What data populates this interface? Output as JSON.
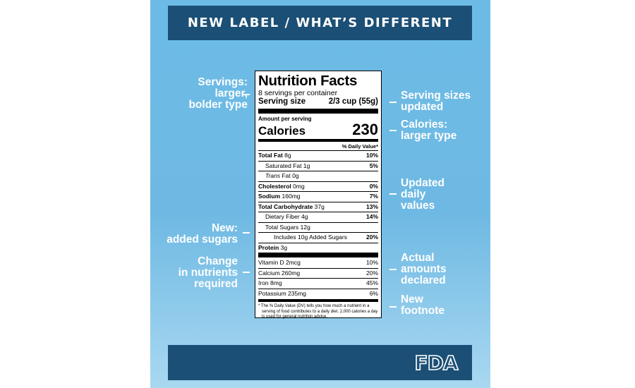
{
  "header": {
    "title": "NEW LABEL / WHAT’S DIFFERENT"
  },
  "annotations": {
    "servings": [
      "Servings:",
      "larger,",
      "bolder type"
    ],
    "serving_sizes": [
      "Serving sizes",
      "updated"
    ],
    "calories": [
      "Calories:",
      "larger type"
    ],
    "daily_values": [
      "Updated",
      "daily",
      "values"
    ],
    "added_sugars": [
      "New:",
      "added sugars"
    ],
    "nutrients_required": [
      "Change",
      "in nutrients",
      "required"
    ],
    "actual_amounts": [
      "Actual",
      "amounts",
      "declared"
    ],
    "footnote": [
      "New",
      "footnote"
    ]
  },
  "label": {
    "title": "Nutrition Facts",
    "servings_per_container": "8 servings per container",
    "serving_size_label": "Serving size",
    "serving_size_value": "2/3 cup (55g)",
    "amount_per_serving": "Amount per serving",
    "calories_label": "Calories",
    "calories_value": "230",
    "dv_header": "% Daily Value*",
    "nutrients": {
      "total_fat": {
        "name": "Total Fat",
        "amount": "8g",
        "dv": "10%"
      },
      "saturated_fat": {
        "name": "Saturated Fat",
        "amount": "1g",
        "dv": "5%"
      },
      "trans_fat": {
        "name": "Trans",
        "name_rest": "Fat",
        "amount": "0g"
      },
      "cholesterol": {
        "name": "Cholesterol",
        "amount": "0mg",
        "dv": "0%"
      },
      "sodium": {
        "name": "Sodium",
        "amount": "160mg",
        "dv": "7%"
      },
      "total_carb": {
        "name": "Total Carbohydrate",
        "amount": "37g",
        "dv": "13%"
      },
      "fiber": {
        "name": "Dietary Fiber",
        "amount": "4g",
        "dv": "14%"
      },
      "total_sugars": {
        "name": "Total Sugars",
        "amount": "12g"
      },
      "added_sugars": {
        "name": "Includes 10g Added Sugars",
        "dv": "20%"
      },
      "protein": {
        "name": "Protein",
        "amount": "3g"
      }
    },
    "vitamins": [
      {
        "name": "Vitamin D 2mcg",
        "dv": "10%"
      },
      {
        "name": "Calcium 260mg",
        "dv": "20%"
      },
      {
        "name": "Iron 8mg",
        "dv": "45%"
      },
      {
        "name": "Potassium 235mg",
        "dv": "6%"
      }
    ],
    "footnote": "* The % Daily Value (DV) tells you how much a nutrient in a serving of food contributes to a daily diet. 2,000 calories a day is used for general nutrition advice."
  },
  "footer": {
    "logo_text": "FDA"
  },
  "colors": {
    "banner": "#1b4f75",
    "poster_bg": "#6cbbe6",
    "text_light": "#ffffff"
  }
}
